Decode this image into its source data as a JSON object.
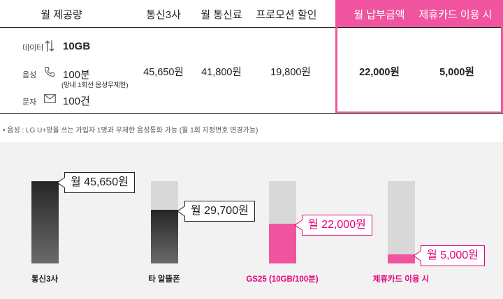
{
  "table": {
    "headers": [
      "월 제공량",
      "통신3사",
      "월 통신료",
      "프로모션 할인",
      "월 납부금액",
      "제휴카드 이용 시"
    ],
    "rows": [
      {
        "label": "데이터",
        "icon": "up-down-arrows-icon",
        "value": "10GB"
      },
      {
        "label": "음성",
        "icon": "phone-icon",
        "value": "100분",
        "note": "(망내 1회선 음성무제한)"
      },
      {
        "label": "문자",
        "icon": "envelope-icon",
        "value": "100건"
      }
    ],
    "prices": {
      "carrier3": "45,650원",
      "monthly_fee": "41,800원",
      "promo_discount": "19,800원",
      "monthly_payment": "22,000원",
      "with_card": "5,000원"
    }
  },
  "footnote": "• 음성 : LG U+망을 쓰는 가입자 1명과 무제한 음성통화 가능 (월 1회 지정번호 변경가능)",
  "colors": {
    "accent": "#f0549e",
    "accent_text": "#e3007e",
    "dark_bar": "#333333",
    "track": "#d8d8d8"
  },
  "chart_data": {
    "type": "bar",
    "categories": [
      "통신3사",
      "타 알뜰폰",
      "GS25 (10GB/100분)",
      "제휴카드 이용 시"
    ],
    "values": [
      45650,
      29700,
      22000,
      5000
    ],
    "labels": [
      "월 45,650원",
      "월 29,700원",
      "월 22,000원",
      "월 5,000원"
    ],
    "colors": [
      "dark",
      "dark",
      "pink",
      "pink"
    ],
    "ylim": [
      0,
      45650
    ]
  }
}
